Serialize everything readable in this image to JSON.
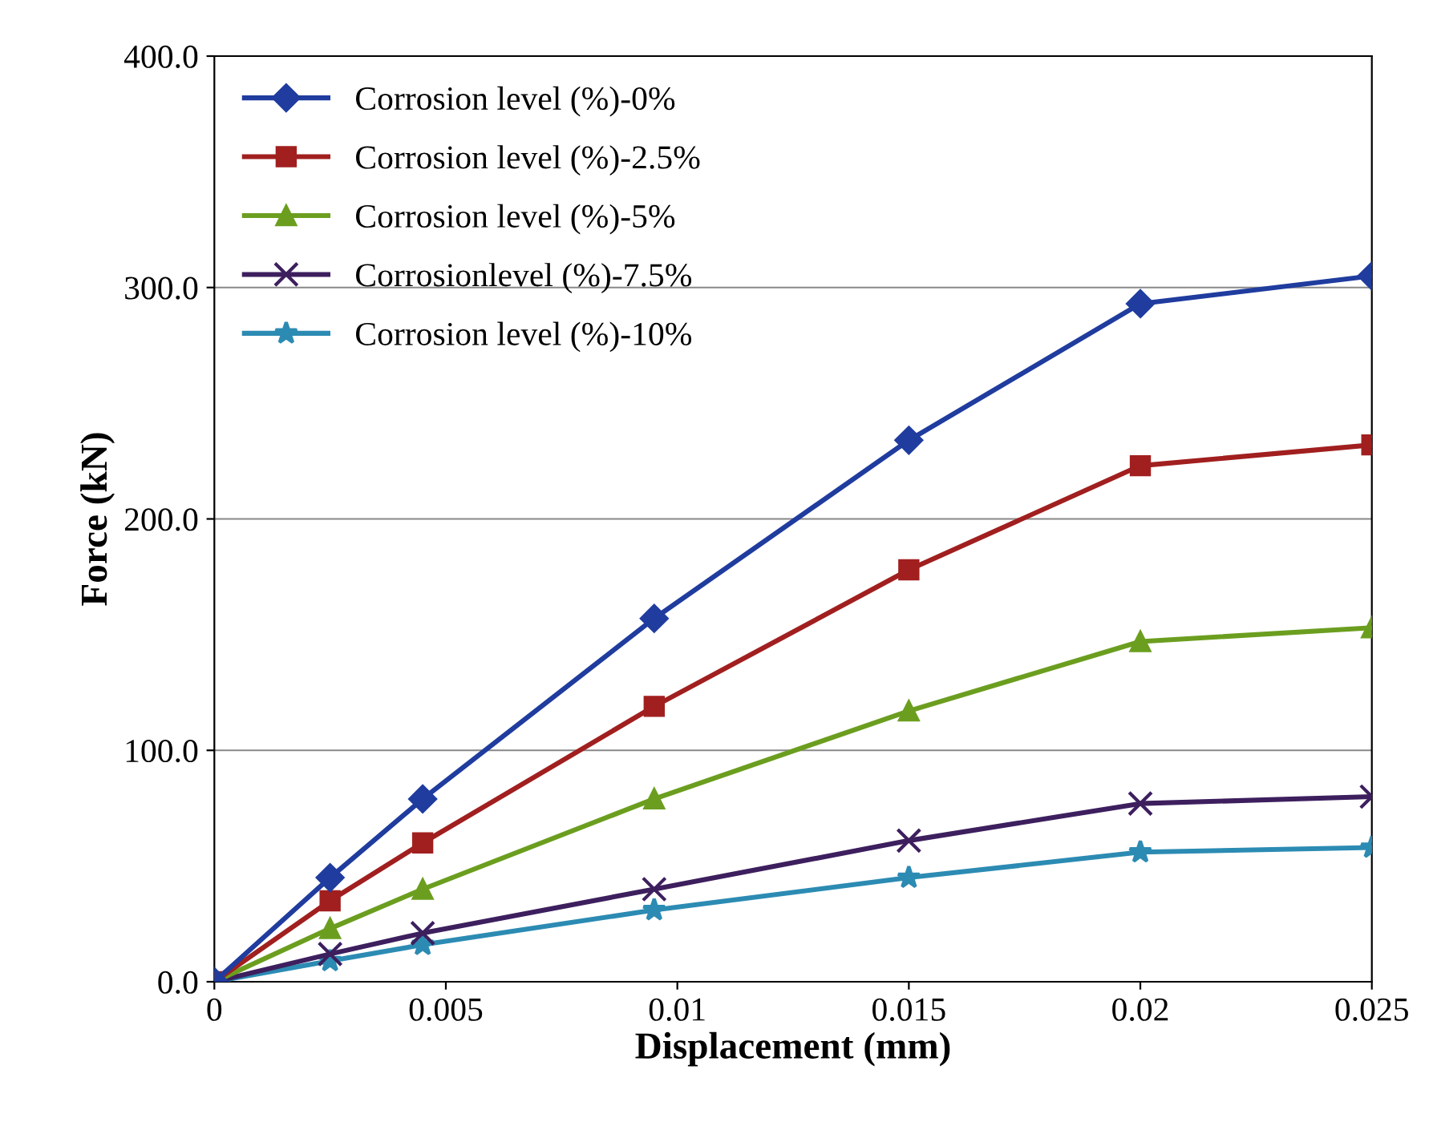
{
  "chart_data": {
    "type": "line",
    "xlabel": "Displacement (mm)",
    "ylabel": "Force (kN)",
    "x": [
      0,
      0.0025,
      0.0045,
      0.0095,
      0.015,
      0.02,
      0.025
    ],
    "series": [
      {
        "name": "Corrosion level (%)-0%",
        "color": "#1f3c9e",
        "marker": "diamond",
        "values": [
          0,
          45,
          79,
          157,
          234,
          293,
          305
        ]
      },
      {
        "name": "Corrosion level (%)-2.5%",
        "color": "#a11f1f",
        "marker": "square",
        "values": [
          0,
          35,
          60,
          119,
          178,
          223,
          232
        ]
      },
      {
        "name": "Corrosion level (%)-5%",
        "color": "#6b9e1f",
        "marker": "triangle",
        "values": [
          0,
          23,
          40,
          79,
          117,
          147,
          153
        ]
      },
      {
        "name": "Corrosionlevel (%)-7.5%",
        "color": "#3d1f5e",
        "marker": "cross",
        "values": [
          0,
          12,
          21,
          40,
          61,
          77,
          80
        ]
      },
      {
        "name": "Corrosion level (%)-10%",
        "color": "#2c8bb3",
        "marker": "star",
        "values": [
          0,
          9,
          16,
          31,
          45,
          56,
          58
        ]
      }
    ],
    "xlim": [
      0,
      0.025
    ],
    "xticks": [
      0,
      0.005,
      0.01,
      0.015,
      0.02,
      0.025
    ],
    "ylim": [
      0,
      400
    ],
    "yticks": [
      {
        "value": 0,
        "label": "0.0"
      },
      {
        "value": 100,
        "label": "100.0"
      },
      {
        "value": 200,
        "label": "200.0"
      },
      {
        "value": 300,
        "label": "300.0"
      },
      {
        "value": 400,
        "label": "400.0"
      }
    ],
    "grid": "y",
    "legend": "top left",
    "line_style": "solid"
  }
}
